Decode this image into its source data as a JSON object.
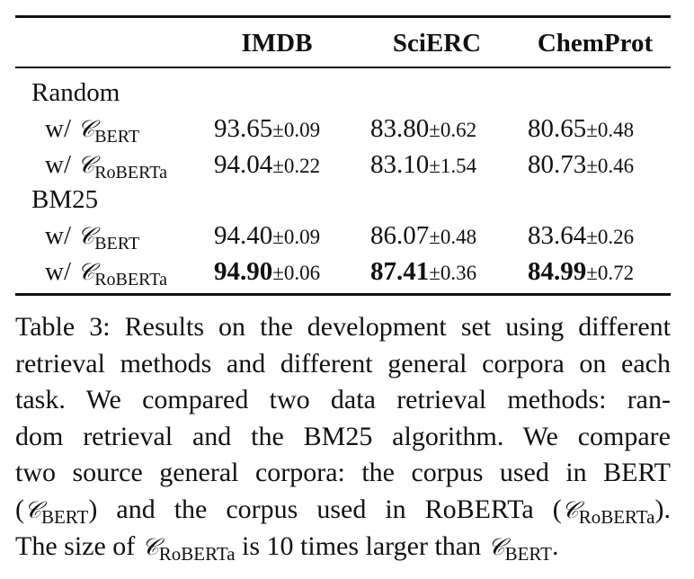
{
  "table": {
    "headers": [
      "IMDB",
      "SciERC",
      "ChemProt"
    ],
    "groups": [
      {
        "label": "Random",
        "rows": [
          {
            "prefix": "w/",
            "corpus_symbol": "𝒞",
            "corpus_sub": "BERT",
            "cells": [
              {
                "mean": "93.65",
                "std": "±0.09",
                "best": false
              },
              {
                "mean": "83.80",
                "std": "±0.62",
                "best": false
              },
              {
                "mean": "80.65",
                "std": "±0.48",
                "best": false
              }
            ]
          },
          {
            "prefix": "w/",
            "corpus_symbol": "𝒞",
            "corpus_sub": "RoBERTa",
            "cells": [
              {
                "mean": "94.04",
                "std": "±0.22",
                "best": false
              },
              {
                "mean": "83.10",
                "std": "±1.54",
                "best": false
              },
              {
                "mean": "80.73",
                "std": "±0.46",
                "best": false
              }
            ]
          }
        ]
      },
      {
        "label": "BM25",
        "rows": [
          {
            "prefix": "w/",
            "corpus_symbol": "𝒞",
            "corpus_sub": "BERT",
            "cells": [
              {
                "mean": "94.40",
                "std": "±0.09",
                "best": false
              },
              {
                "mean": "86.07",
                "std": "±0.48",
                "best": false
              },
              {
                "mean": "83.64",
                "std": "±0.26",
                "best": false
              }
            ]
          },
          {
            "prefix": "w/",
            "corpus_symbol": "𝒞",
            "corpus_sub": "RoBERTa",
            "cells": [
              {
                "mean": "94.90",
                "std": "±0.06",
                "best": true
              },
              {
                "mean": "87.41",
                "std": "±0.36",
                "best": true
              },
              {
                "mean": "84.99",
                "std": "±0.72",
                "best": true
              }
            ]
          }
        ]
      }
    ]
  },
  "caption": {
    "line1": "Table 3: Results on the development set using different",
    "line2": "retrieval methods and different general corpora on each",
    "line3": "task.  We compared two data retrieval methods: ran-",
    "line4": "dom retrieval and the BM25 algorithm.  We compare",
    "line5": "two source general corpora: the corpus used in BERT",
    "line6_a": "(",
    "line6_sym1": "𝒞",
    "line6_sub1": "BERT",
    "line6_b": ") and the corpus used in RoBERTa (",
    "line6_sym2": "𝒞",
    "line6_sub2": "RoBERTa",
    "line6_c": ").",
    "line7_a": "The size of ",
    "line7_sym1": "𝒞",
    "line7_sub1": "RoBERTa",
    "line7_b": " is 10 times larger than ",
    "line7_sym2": "𝒞",
    "line7_sub2": "BERT",
    "line7_c": "."
  }
}
